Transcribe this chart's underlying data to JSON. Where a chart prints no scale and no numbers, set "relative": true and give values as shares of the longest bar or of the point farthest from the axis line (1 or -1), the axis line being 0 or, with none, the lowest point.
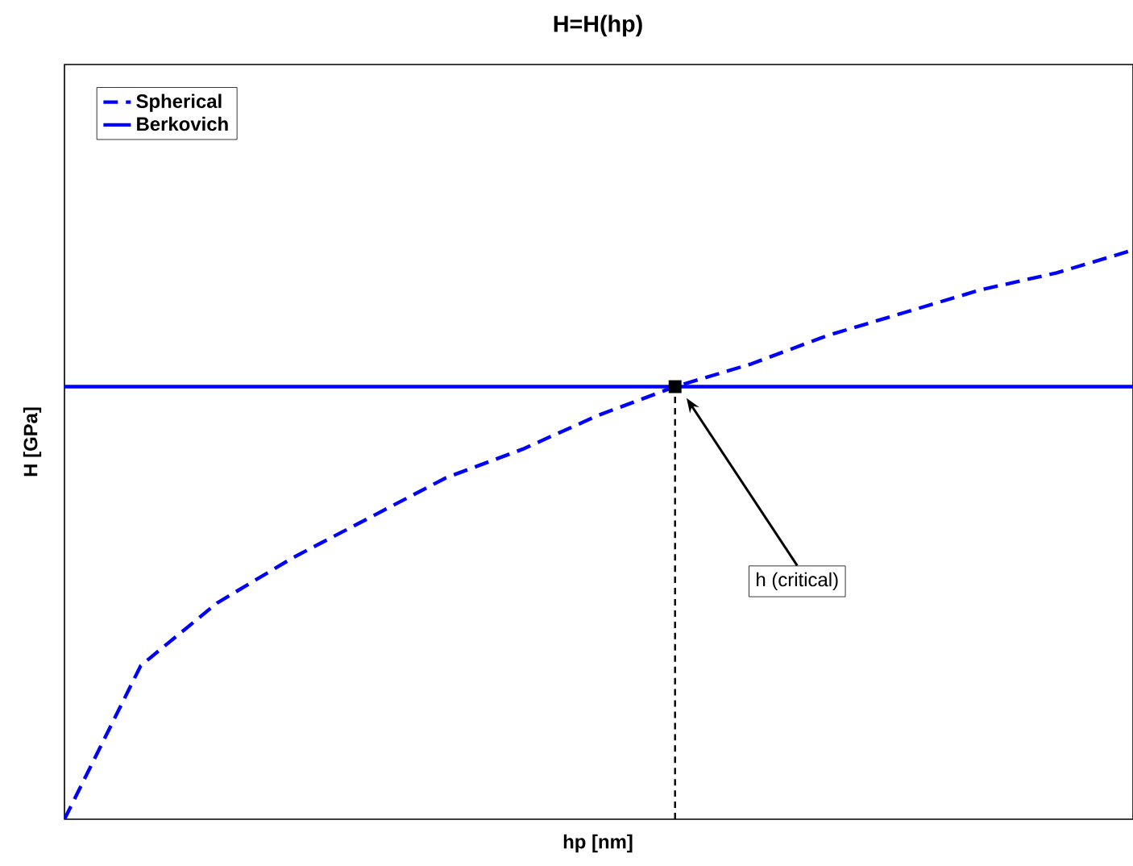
{
  "chart_data": {
    "type": "line",
    "title": "H=H(hp)",
    "xlabel": "hp [nm]",
    "ylabel": "H [GPa]",
    "relative": true,
    "tick_labels": false,
    "legend": "top left",
    "marker": "none",
    "categories": [
      null,
      null,
      null,
      null,
      null,
      null,
      null,
      null,
      null,
      null,
      null,
      null,
      null,
      null,
      null
    ],
    "series": [
      {
        "name": "Spherical",
        "color": "#0000ff",
        "line_style": "dashed",
        "values": [
          0,
          0.27,
          0.38,
          0.46,
          0.53,
          0.6,
          0.65,
          0.71,
          0.76,
          0.8,
          0.85,
          0.89,
          0.93,
          0.96,
          1
        ]
      },
      {
        "name": "Berkovich",
        "color": "#0000ff",
        "line_style": "solid",
        "values": [
          0.76,
          0.76,
          0.76,
          0.76,
          0.76,
          0.76,
          0.76,
          0.76,
          0.76,
          0.76,
          0.76,
          0.76,
          0.76,
          0.76,
          0.76
        ]
      }
    ],
    "annotations": [
      "h (critical)"
    ]
  }
}
